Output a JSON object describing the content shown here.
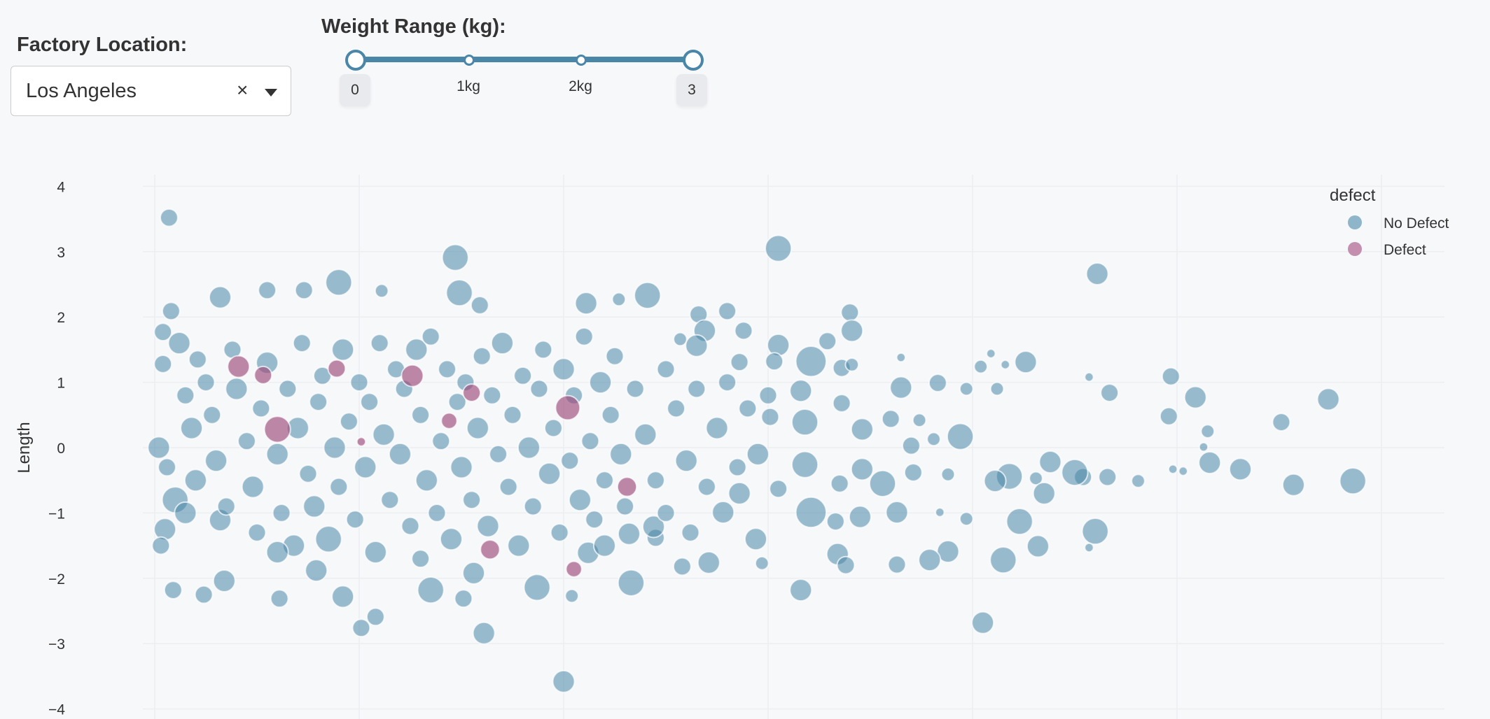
{
  "controls": {
    "location_label": "Factory Location:",
    "location_value": "Los Angeles",
    "clear_symbol": "×",
    "weight_label": "Weight Range (kg):",
    "weight_min": "0",
    "weight_max": "3",
    "weight_marks": [
      "1kg",
      "2kg"
    ],
    "weight_range": [
      0,
      3
    ]
  },
  "chart_data": {
    "type": "scatter",
    "ylabel": "Length",
    "xlabel": "",
    "ylim": [
      -4,
      4
    ],
    "yticks": [
      "4",
      "3",
      "2",
      "1",
      "0",
      "−1",
      "−2",
      "−3",
      "−4"
    ],
    "grid": true,
    "legend": {
      "title": "defect",
      "placement": "top-right"
    },
    "colors": {
      "No Defect": "#4a86a8",
      "Defect": "#9c4a7a"
    },
    "series": [
      {
        "name": "No Defect",
        "points": [
          [
            3.05,
            3.05,
            3
          ],
          [
            4.61,
            2.66,
            2.5
          ],
          [
            4.26,
            1.31,
            2.5
          ],
          [
            3.65,
            0.92,
            2.5
          ],
          [
            3.83,
            0.99,
            2
          ],
          [
            3.97,
            0.9,
            1.5
          ],
          [
            4.04,
            1.24,
            1.5
          ],
          [
            4.12,
            0.9,
            1.5
          ],
          [
            4.09,
            1.44,
            1
          ],
          [
            4.16,
            1.27,
            1
          ],
          [
            4.67,
            0.84,
            2
          ],
          [
            4.57,
            1.08,
            1
          ],
          [
            4.97,
            1.09,
            2
          ],
          [
            5.09,
            0.77,
            2.5
          ],
          [
            4.96,
            0.48,
            2
          ],
          [
            5.15,
            0.25,
            1.5
          ],
          [
            5.13,
            0.01,
            1
          ],
          [
            5.51,
            0.39,
            2
          ],
          [
            5.74,
            0.74,
            2.5
          ],
          [
            5.16,
            -0.23,
            2.5
          ],
          [
            5.31,
            -0.33,
            2.5
          ],
          [
            5.57,
            -0.57,
            2.5
          ],
          [
            5.86,
            -0.51,
            3
          ],
          [
            4.98,
            -0.33,
            1
          ],
          [
            5.03,
            -0.36,
            1
          ],
          [
            4.81,
            -0.51,
            1.5
          ],
          [
            4.66,
            -0.45,
            2
          ],
          [
            4.54,
            -0.45,
            2
          ],
          [
            4.5,
            -0.38,
            3
          ],
          [
            4.38,
            -0.22,
            2.5
          ],
          [
            4.31,
            -0.47,
            1.5
          ],
          [
            4.35,
            -0.7,
            2.5
          ],
          [
            4.18,
            -0.44,
            3
          ],
          [
            4.11,
            -0.51,
            2.5
          ],
          [
            4.6,
            -1.28,
            3
          ],
          [
            4.23,
            -1.13,
            3
          ],
          [
            4.32,
            -1.51,
            2.5
          ],
          [
            4.57,
            -1.53,
            1
          ],
          [
            4.15,
            -1.72,
            3
          ],
          [
            4.05,
            -2.68,
            2.5
          ],
          [
            3.97,
            -1.09,
            1.5
          ],
          [
            3.88,
            -1.59,
            2.5
          ],
          [
            3.79,
            -1.72,
            2.5
          ],
          [
            3.63,
            -1.79,
            2
          ],
          [
            3.84,
            -0.99,
            1
          ],
          [
            3.94,
            0.17,
            3
          ],
          [
            3.74,
            0.42,
            1.5
          ],
          [
            3.6,
            0.44,
            2
          ],
          [
            3.7,
            0.03,
            2
          ],
          [
            3.81,
            0.13,
            1.5
          ],
          [
            3.56,
            -0.55,
            3
          ],
          [
            3.71,
            -0.38,
            2
          ],
          [
            3.63,
            -0.99,
            2.5
          ],
          [
            3.88,
            -0.41,
            1.5
          ],
          [
            3.65,
            1.38,
            1
          ],
          [
            3.4,
            2.07,
            2
          ],
          [
            3.41,
            1.79,
            2.5
          ],
          [
            3.29,
            1.63,
            2
          ],
          [
            3.21,
            1.32,
            3.5
          ],
          [
            3.36,
            1.22,
            2
          ],
          [
            3.41,
            1.27,
            1.5
          ],
          [
            3.05,
            1.57,
            2.5
          ],
          [
            3.03,
            1.32,
            2
          ],
          [
            3.16,
            0.87,
            2.5
          ],
          [
            3.36,
            0.68,
            2
          ],
          [
            3.46,
            0.28,
            2.5
          ],
          [
            3.18,
            0.39,
            3
          ],
          [
            3.01,
            0.47,
            2
          ],
          [
            3.18,
            -0.26,
            3
          ],
          [
            3.35,
            -0.55,
            2
          ],
          [
            3.46,
            -0.33,
            2.5
          ],
          [
            3.21,
            -0.99,
            3.5
          ],
          [
            3.33,
            -1.13,
            2
          ],
          [
            3.45,
            -1.06,
            2.5
          ],
          [
            3.34,
            -1.63,
            2.5
          ],
          [
            3.38,
            -1.8,
            2
          ],
          [
            3.16,
            -2.18,
            2.5
          ],
          [
            2.97,
            -1.77,
            1.5
          ],
          [
            2.94,
            -1.4,
            2.5
          ],
          [
            2.78,
            -0.99,
            2.5
          ],
          [
            2.86,
            -0.7,
            2.5
          ],
          [
            3.05,
            -0.63,
            2
          ],
          [
            2.71,
            -1.76,
            2.5
          ],
          [
            2.58,
            -1.82,
            2
          ],
          [
            2.33,
            -2.07,
            3
          ],
          [
            2.45,
            -1.38,
            2
          ],
          [
            2.44,
            -1.21,
            2.5
          ],
          [
            2.32,
            -1.32,
            2.5
          ],
          [
            2.0,
            -3.58,
            2.5
          ],
          [
            1.61,
            -2.84,
            2.5
          ],
          [
            1.47,
            2.91,
            3
          ],
          [
            0.07,
            3.52,
            2
          ],
          [
            2.41,
            2.33,
            3
          ],
          [
            2.11,
            2.21,
            2.5
          ],
          [
            1.49,
            2.37,
            3
          ],
          [
            0.9,
            2.53,
            3
          ],
          [
            0.32,
            2.3,
            2.5
          ],
          [
            0.55,
            2.41,
            2
          ],
          [
            0.73,
            2.41,
            2
          ],
          [
            1.11,
            2.4,
            1.5
          ],
          [
            1.59,
            2.18,
            2
          ],
          [
            2.27,
            2.27,
            1.5
          ],
          [
            2.66,
            2.04,
            2
          ],
          [
            2.8,
            2.09,
            2
          ],
          [
            2.88,
            1.79,
            2
          ],
          [
            2.69,
            1.79,
            2.5
          ],
          [
            2.57,
            1.66,
            1.5
          ],
          [
            2.65,
            1.56,
            2.5
          ],
          [
            2.86,
            1.31,
            2
          ],
          [
            0.08,
            2.09,
            2
          ],
          [
            0.04,
            1.77,
            2
          ],
          [
            0.21,
            1.35,
            2
          ],
          [
            0.32,
            -1.11,
            2.5
          ],
          [
            0.09,
            -2.18,
            2
          ],
          [
            0.24,
            -2.25,
            2
          ],
          [
            0.34,
            -2.04,
            2.5
          ],
          [
            0.61,
            -2.31,
            2
          ],
          [
            0.79,
            -1.88,
            2.5
          ],
          [
            0.92,
            -2.28,
            2.5
          ],
          [
            1.01,
            -2.76,
            2
          ],
          [
            1.08,
            -2.59,
            2
          ],
          [
            1.35,
            -2.18,
            3
          ],
          [
            1.51,
            -2.31,
            2
          ],
          [
            1.87,
            -2.14,
            3
          ],
          [
            2.04,
            -2.27,
            1.5
          ],
          [
            2.12,
            -1.61,
            2.5
          ],
          [
            1.56,
            -1.92,
            2.5
          ],
          [
            0.02,
            0.0,
            2.5
          ],
          [
            0.06,
            -0.3,
            2
          ],
          [
            0.1,
            -0.8,
            3
          ],
          [
            0.05,
            -1.25,
            2.5
          ],
          [
            0.03,
            -1.5,
            2
          ],
          [
            0.04,
            1.28,
            2
          ],
          [
            0.12,
            1.6,
            2.5
          ],
          [
            0.15,
            0.8,
            2
          ],
          [
            0.18,
            0.3,
            2.5
          ],
          [
            0.2,
            -0.5,
            2.5
          ],
          [
            0.25,
            1.0,
            2
          ],
          [
            0.28,
            0.5,
            2
          ],
          [
            0.3,
            -0.2,
            2.5
          ],
          [
            0.35,
            -0.9,
            2
          ],
          [
            0.38,
            1.5,
            2
          ],
          [
            0.4,
            0.9,
            2.5
          ],
          [
            0.45,
            0.1,
            2
          ],
          [
            0.48,
            -0.6,
            2.5
          ],
          [
            0.5,
            -1.3,
            2
          ],
          [
            0.52,
            0.6,
            2
          ],
          [
            0.55,
            1.3,
            2.5
          ],
          [
            0.6,
            -0.1,
            2.5
          ],
          [
            0.62,
            -1.0,
            2
          ],
          [
            0.65,
            0.9,
            2
          ],
          [
            0.68,
            -1.5,
            2.5
          ],
          [
            0.7,
            0.3,
            2.5
          ],
          [
            0.72,
            1.6,
            2
          ],
          [
            0.75,
            -0.4,
            2
          ],
          [
            0.78,
            -0.9,
            2.5
          ],
          [
            0.8,
            0.7,
            2
          ],
          [
            0.82,
            1.1,
            2
          ],
          [
            0.85,
            -1.4,
            3
          ],
          [
            0.88,
            0.0,
            2.5
          ],
          [
            0.9,
            -0.6,
            2
          ],
          [
            0.92,
            1.5,
            2.5
          ],
          [
            0.95,
            0.4,
            2
          ],
          [
            0.98,
            -1.1,
            2
          ],
          [
            1.0,
            1.0,
            2
          ],
          [
            1.03,
            -0.3,
            2.5
          ],
          [
            1.05,
            0.7,
            2
          ],
          [
            1.08,
            -1.6,
            2.5
          ],
          [
            1.1,
            1.6,
            2
          ],
          [
            1.12,
            0.2,
            2.5
          ],
          [
            1.15,
            -0.8,
            2
          ],
          [
            1.18,
            1.2,
            2
          ],
          [
            1.2,
            -0.1,
            2.5
          ],
          [
            1.22,
            0.9,
            2
          ],
          [
            1.25,
            -1.2,
            2
          ],
          [
            1.28,
            1.5,
            2.5
          ],
          [
            1.3,
            0.5,
            2
          ],
          [
            1.33,
            -0.5,
            2.5
          ],
          [
            1.35,
            1.7,
            2
          ],
          [
            1.38,
            -1.0,
            2
          ],
          [
            1.4,
            0.1,
            2
          ],
          [
            1.43,
            1.2,
            2
          ],
          [
            1.45,
            -1.4,
            2.5
          ],
          [
            1.48,
            0.7,
            2
          ],
          [
            1.5,
            -0.3,
            2.5
          ],
          [
            1.52,
            1.0,
            2
          ],
          [
            1.55,
            -0.8,
            2
          ],
          [
            1.58,
            0.3,
            2.5
          ],
          [
            1.6,
            1.4,
            2
          ],
          [
            1.63,
            -1.2,
            2.5
          ],
          [
            1.65,
            0.8,
            2
          ],
          [
            1.68,
            -0.1,
            2
          ],
          [
            1.7,
            1.6,
            2.5
          ],
          [
            1.73,
            -0.6,
            2
          ],
          [
            1.75,
            0.5,
            2
          ],
          [
            1.78,
            -1.5,
            2.5
          ],
          [
            1.8,
            1.1,
            2
          ],
          [
            1.83,
            0.0,
            2.5
          ],
          [
            1.85,
            -0.9,
            2
          ],
          [
            1.88,
            0.9,
            2
          ],
          [
            1.9,
            1.5,
            2
          ],
          [
            1.93,
            -0.4,
            2.5
          ],
          [
            1.95,
            0.3,
            2
          ],
          [
            1.98,
            -1.3,
            2
          ],
          [
            2.0,
            1.2,
            2.5
          ],
          [
            2.03,
            -0.2,
            2
          ],
          [
            2.05,
            0.8,
            2
          ],
          [
            2.08,
            -0.8,
            2.5
          ],
          [
            2.1,
            1.7,
            2
          ],
          [
            2.13,
            0.1,
            2
          ],
          [
            2.15,
            -1.1,
            2
          ],
          [
            2.18,
            1.0,
            2.5
          ],
          [
            2.2,
            -0.5,
            2
          ],
          [
            2.23,
            0.5,
            2
          ],
          [
            2.25,
            1.4,
            2
          ],
          [
            2.28,
            -0.1,
            2.5
          ],
          [
            2.3,
            -0.9,
            2
          ],
          [
            2.35,
            0.9,
            2
          ],
          [
            2.4,
            0.2,
            2.5
          ],
          [
            2.45,
            -0.5,
            2
          ],
          [
            2.5,
            1.2,
            2
          ],
          [
            2.55,
            0.6,
            2
          ],
          [
            2.6,
            -0.2,
            2.5
          ],
          [
            2.65,
            0.9,
            2
          ],
          [
            2.7,
            -0.6,
            2
          ],
          [
            2.75,
            0.3,
            2.5
          ],
          [
            2.8,
            1.0,
            2
          ],
          [
            2.85,
            -0.3,
            2
          ],
          [
            2.9,
            0.6,
            2
          ],
          [
            2.95,
            -0.1,
            2.5
          ],
          [
            3.0,
            0.8,
            2
          ],
          [
            2.5,
            -1.0,
            2
          ],
          [
            2.62,
            -1.3,
            2
          ],
          [
            2.2,
            -1.5,
            2.5
          ],
          [
            1.3,
            -1.7,
            2
          ],
          [
            0.6,
            -1.6,
            2.5
          ],
          [
            0.15,
            -1.0,
            2.5
          ]
        ]
      },
      {
        "name": "Defect",
        "points": [
          [
            0.41,
            1.24,
            2.5
          ],
          [
            0.53,
            1.11,
            2
          ],
          [
            0.6,
            0.28,
            3
          ],
          [
            0.89,
            1.21,
            2
          ],
          [
            1.01,
            0.09,
            1
          ],
          [
            1.26,
            1.1,
            2.5
          ],
          [
            1.44,
            0.41,
            1.8
          ],
          [
            1.55,
            0.84,
            2
          ],
          [
            2.02,
            0.61,
            2.8
          ],
          [
            2.31,
            -0.6,
            2.2
          ],
          [
            1.64,
            -1.56,
            2.2
          ],
          [
            2.05,
            -1.86,
            1.8
          ]
        ]
      }
    ]
  }
}
